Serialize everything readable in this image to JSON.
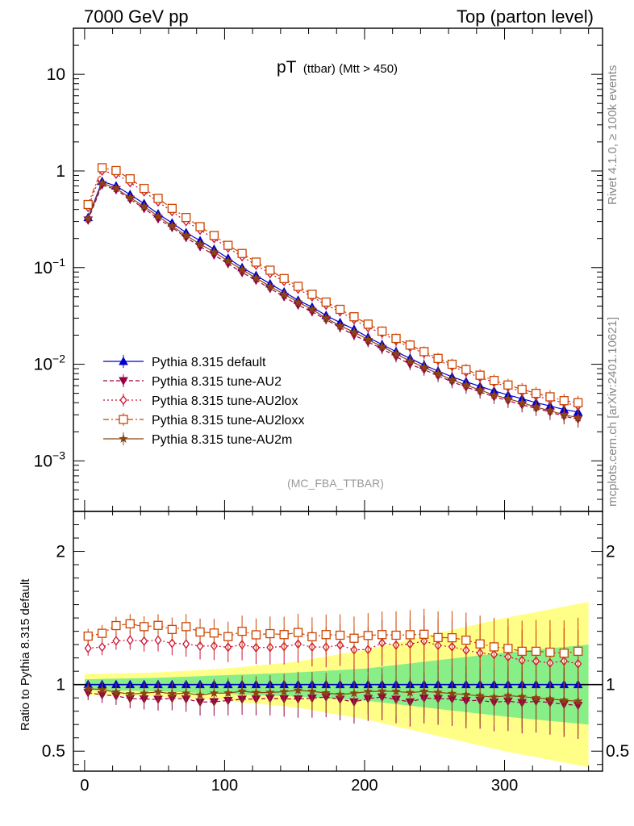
{
  "header": {
    "left": "7000 GeV pp",
    "right": "Top (parton level)"
  },
  "side": {
    "rivet": "Rivet 4.1.0, ≥ 100k events",
    "mcplots": "mcplots.cern.ch [arXiv:2401.10621]"
  },
  "chart_data": {
    "type": "line",
    "title": "pT",
    "title_sub": "(ttbar) (Mtt > 450)",
    "analysis": "(MC_FBA_TTBAR)",
    "xlabel": "",
    "ylabel": "",
    "ratio_ylabel": "Ratio to Pythia 8.315 default",
    "xlim": [
      -8,
      370
    ],
    "ylim": [
      0.0003,
      30
    ],
    "ylog": true,
    "ratio_ylim": [
      0.35,
      2.3
    ],
    "legend_position": "bottom-left",
    "x_ticks": [
      0,
      100,
      200,
      300
    ],
    "x_tick_labels": [
      "0",
      "100",
      "200",
      "300"
    ],
    "y_ticks": [
      10,
      1,
      0.1,
      0.01,
      0.001
    ],
    "y_tick_labels": [
      {
        "base": "10",
        "exp": ""
      },
      {
        "base": "1",
        "exp": ""
      },
      {
        "base": "10",
        "exp": "−1"
      },
      {
        "base": "10",
        "exp": "−2"
      },
      {
        "base": "10",
        "exp": "−3"
      }
    ],
    "ratio_y_ticks": [
      2,
      1,
      0.5
    ],
    "ratio_y_tick_labels": [
      "2",
      "1",
      "0.5"
    ],
    "x": [
      2.5,
      12.5,
      22.5,
      32.5,
      42.5,
      52.5,
      62.5,
      72.5,
      82.5,
      92.5,
      102.5,
      112.5,
      122.5,
      132.5,
      142.5,
      152.5,
      162.5,
      172.5,
      182.5,
      192.5,
      202.5,
      212.5,
      222.5,
      232.5,
      242.5,
      252.5,
      262.5,
      272.5,
      282.5,
      292.5,
      302.5,
      312.5,
      322.5,
      332.5,
      342.5,
      352.5
    ],
    "series": [
      {
        "name": "Pythia 8.315 default",
        "color": "#0000cc",
        "marker": "triangle-up",
        "dash": "",
        "values": [
          0.33,
          0.78,
          0.7,
          0.57,
          0.46,
          0.36,
          0.29,
          0.23,
          0.19,
          0.155,
          0.125,
          0.1,
          0.083,
          0.068,
          0.056,
          0.046,
          0.039,
          0.032,
          0.027,
          0.023,
          0.019,
          0.016,
          0.0135,
          0.0115,
          0.0098,
          0.0085,
          0.0074,
          0.0066,
          0.0059,
          0.0053,
          0.0048,
          0.0044,
          0.004,
          0.0037,
          0.0034,
          0.0032
        ]
      },
      {
        "name": "Pythia 8.315 tune-AU2",
        "color": "#990044",
        "marker": "triangle-down",
        "dash": "5,3",
        "values": [
          0.31,
          0.72,
          0.64,
          0.51,
          0.41,
          0.32,
          0.26,
          0.205,
          0.165,
          0.135,
          0.11,
          0.089,
          0.074,
          0.061,
          0.05,
          0.041,
          0.035,
          0.029,
          0.024,
          0.02,
          0.017,
          0.0145,
          0.012,
          0.01,
          0.0088,
          0.0076,
          0.0066,
          0.0058,
          0.0052,
          0.0046,
          0.0042,
          0.0038,
          0.0035,
          0.0032,
          0.0029,
          0.0027
        ]
      },
      {
        "name": "Pythia 8.315 tune-AU2lox",
        "color": "#cc1133",
        "marker": "diamond-open",
        "dash": "2,3",
        "values": [
          0.42,
          1.0,
          0.93,
          0.76,
          0.61,
          0.48,
          0.38,
          0.3,
          0.245,
          0.2,
          0.16,
          0.13,
          0.106,
          0.087,
          0.072,
          0.06,
          0.05,
          0.041,
          0.035,
          0.029,
          0.024,
          0.021,
          0.0175,
          0.015,
          0.013,
          0.011,
          0.0095,
          0.0083,
          0.0073,
          0.0065,
          0.0058,
          0.0052,
          0.0047,
          0.0043,
          0.004,
          0.0037
        ]
      },
      {
        "name": "Pythia 8.315 tune-AU2loxx",
        "color": "#cc4400",
        "marker": "square-open",
        "dash": "7,3,2,3",
        "values": [
          0.45,
          1.08,
          1.01,
          0.83,
          0.66,
          0.52,
          0.41,
          0.33,
          0.265,
          0.215,
          0.17,
          0.14,
          0.114,
          0.094,
          0.077,
          0.064,
          0.053,
          0.044,
          0.037,
          0.031,
          0.026,
          0.022,
          0.0185,
          0.0158,
          0.0135,
          0.0115,
          0.01,
          0.0088,
          0.0077,
          0.0068,
          0.0061,
          0.0055,
          0.005,
          0.0046,
          0.0042,
          0.004
        ]
      },
      {
        "name": "Pythia 8.315 tune-AU2m",
        "color": "#8b4513",
        "marker": "star",
        "dash": "",
        "values": [
          0.32,
          0.75,
          0.66,
          0.53,
          0.43,
          0.34,
          0.27,
          0.215,
          0.175,
          0.145,
          0.117,
          0.095,
          0.078,
          0.064,
          0.053,
          0.044,
          0.037,
          0.03,
          0.025,
          0.0215,
          0.018,
          0.0152,
          0.0128,
          0.0108,
          0.0093,
          0.008,
          0.0069,
          0.0061,
          0.0054,
          0.0048,
          0.0044,
          0.004,
          0.0036,
          0.0033,
          0.003,
          0.0028
        ]
      }
    ],
    "ratio_band_x": [
      0,
      50,
      100,
      150,
      200,
      250,
      300,
      360
    ],
    "ratio_band_green": [
      0.04,
      0.05,
      0.07,
      0.09,
      0.12,
      0.18,
      0.24,
      0.3
    ],
    "ratio_band_yellow": [
      0.08,
      0.09,
      0.12,
      0.17,
      0.26,
      0.38,
      0.5,
      0.62
    ]
  }
}
